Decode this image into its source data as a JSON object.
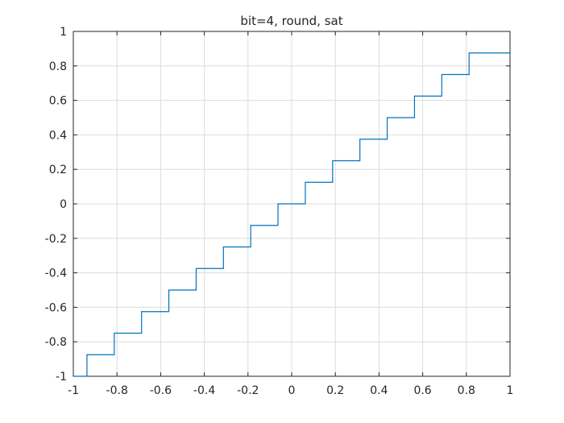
{
  "chart_data": {
    "type": "line",
    "title": "bit=4, round, sat",
    "xlabel": "",
    "ylabel": "",
    "xlim": [
      -1,
      1
    ],
    "ylim": [
      -1,
      1
    ],
    "grid": true,
    "x_ticks": [
      -1,
      -0.8,
      -0.6,
      -0.4,
      -0.2,
      0,
      0.2,
      0.4,
      0.6,
      0.8,
      1
    ],
    "x_tick_labels": [
      "-1",
      "-0.8",
      "-0.6",
      "-0.4",
      "-0.2",
      "0",
      "0.2",
      "0.4",
      "0.6",
      "0.8",
      "1"
    ],
    "y_ticks": [
      -1,
      -0.8,
      -0.6,
      -0.4,
      -0.2,
      0,
      0.2,
      0.4,
      0.6,
      0.8,
      1
    ],
    "y_tick_labels": [
      "-1",
      "-0.8",
      "-0.6",
      "-0.4",
      "-0.2",
      "0",
      "0.2",
      "0.4",
      "0.6",
      "0.8",
      "1"
    ],
    "line_color": "#0072bd",
    "series": [
      {
        "x": [
          -1,
          -0.9375,
          -0.9375,
          -0.8125,
          -0.8125,
          -0.6875,
          -0.6875,
          -0.5625,
          -0.5625,
          -0.4375,
          -0.4375,
          -0.3125,
          -0.3125,
          -0.1875,
          -0.1875,
          -0.0625,
          -0.0625,
          0.0625,
          0.0625,
          0.1875,
          0.1875,
          0.3125,
          0.3125,
          0.4375,
          0.4375,
          0.5625,
          0.5625,
          0.6875,
          0.6875,
          0.8125,
          0.8125,
          1
        ],
        "y": [
          -1,
          -1,
          -0.875,
          -0.875,
          -0.75,
          -0.75,
          -0.625,
          -0.625,
          -0.5,
          -0.5,
          -0.375,
          -0.375,
          -0.25,
          -0.25,
          -0.125,
          -0.125,
          0,
          0,
          0.125,
          0.125,
          0.25,
          0.25,
          0.375,
          0.375,
          0.5,
          0.5,
          0.625,
          0.625,
          0.75,
          0.75,
          0.875,
          0.875
        ]
      }
    ]
  }
}
